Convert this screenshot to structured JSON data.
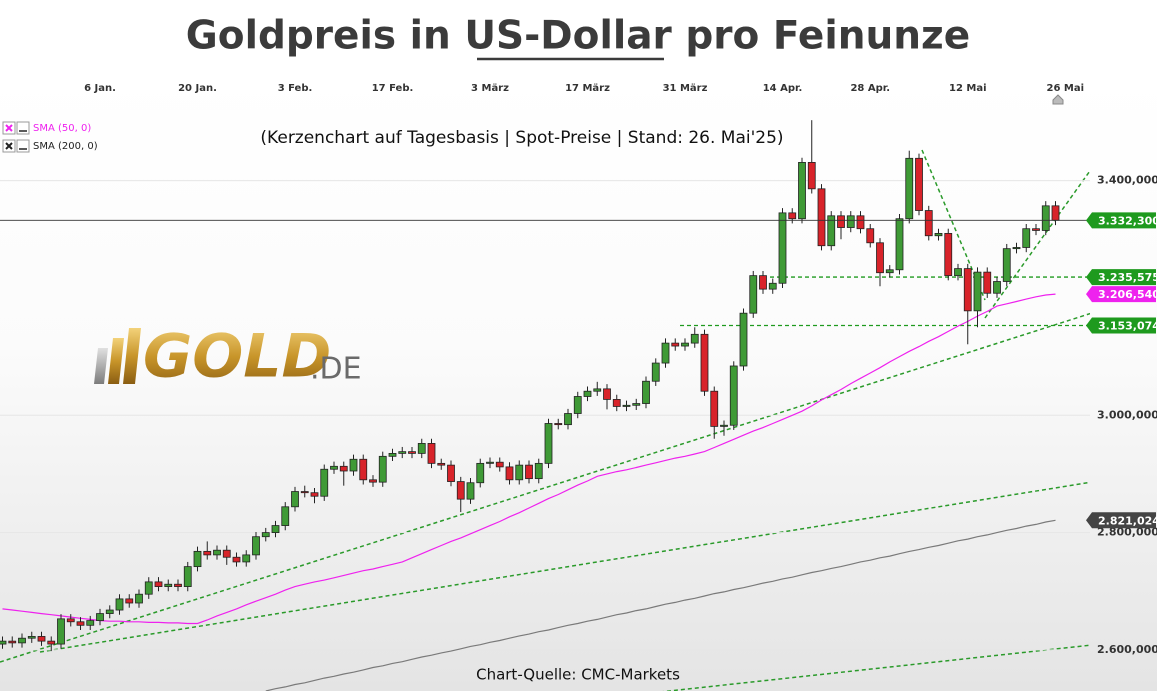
{
  "chart_data": {
    "type": "candlestick",
    "title": "Goldpreis in US-Dollar pro Feinunze",
    "subtitle": "(Kerzenchart auf Tagesbasis | Spot-Preise | Stand: 26. Mai'25)",
    "source": "Chart-Quelle: CMC-Markets",
    "logo": {
      "main": "GOLD",
      "suffix": ".DE"
    },
    "categories": [
      null,
      null,
      null,
      null,
      null,
      null,
      null,
      null,
      null,
      null,
      "6 Jan.",
      null,
      null,
      null,
      null,
      null,
      null,
      null,
      null,
      null,
      "20 Jan.",
      null,
      null,
      null,
      null,
      null,
      null,
      null,
      null,
      null,
      "3 Feb.",
      null,
      null,
      null,
      null,
      null,
      null,
      null,
      null,
      null,
      "17 Feb.",
      null,
      null,
      null,
      null,
      null,
      null,
      null,
      null,
      null,
      "3 März",
      null,
      null,
      null,
      null,
      null,
      null,
      null,
      null,
      null,
      "17 März",
      null,
      null,
      null,
      null,
      null,
      null,
      null,
      null,
      null,
      "31 März",
      null,
      null,
      null,
      null,
      null,
      null,
      null,
      null,
      null,
      "14 Apr.",
      null,
      null,
      null,
      null,
      null,
      null,
      null,
      null,
      "28 Apr.",
      null,
      null,
      null,
      null,
      null,
      null,
      null,
      null,
      null,
      "12 Mai",
      null,
      null,
      null,
      null,
      null,
      null,
      null,
      null,
      null,
      "26 Mai"
    ],
    "ohlc": {
      "up_color": "#3f9a36",
      "down_color": "#d8232a",
      "open": [
        2610,
        2615,
        2612,
        2620,
        2623,
        2615,
        2610,
        2653,
        2648,
        2642,
        2650,
        2662,
        2668,
        2687,
        2680,
        2695,
        2716,
        2708,
        2712,
        2708,
        2742,
        2768,
        2762,
        2770,
        2758,
        2750,
        2762,
        2793,
        2800,
        2812,
        2844,
        2870,
        2868,
        2862,
        2908,
        2913,
        2905,
        2925,
        2890,
        2886,
        2930,
        2935,
        2938,
        2935,
        2952,
        2918,
        2915,
        2887,
        2857,
        2885,
        2918,
        2920,
        2912,
        2890,
        2915,
        2892,
        2918,
        2986,
        2984,
        3003,
        3032,
        3041,
        3045,
        3027,
        3015,
        3017,
        3020,
        3058,
        3089,
        3123,
        3118,
        3123,
        3138,
        3041,
        2981,
        2983,
        3084,
        3174,
        3238,
        3215,
        3225,
        3345,
        3335,
        3431,
        3386,
        3289,
        3340,
        3320,
        3340,
        3318,
        3294,
        3243,
        3248,
        3335,
        3438,
        3349,
        3306,
        3310,
        3238,
        3250,
        3178,
        3244,
        3208,
        3228,
        3284,
        3286,
        3318,
        3315,
        3357,
        null
      ],
      "high": [
        2623,
        2623,
        2628,
        2631,
        2631,
        2623,
        2661,
        2661,
        2656,
        2658,
        2670,
        2676,
        2695,
        2695,
        2703,
        2724,
        2724,
        2720,
        2720,
        2750,
        2776,
        2785,
        2778,
        2778,
        2766,
        2770,
        2801,
        2808,
        2820,
        2852,
        2878,
        2880,
        2876,
        2916,
        2921,
        2921,
        2933,
        2933,
        2898,
        2938,
        2943,
        2946,
        2946,
        2960,
        2960,
        2926,
        2923,
        2895,
        2893,
        2926,
        2928,
        2928,
        2920,
        2923,
        2923,
        2926,
        2994,
        2994,
        3011,
        3040,
        3049,
        3057,
        3053,
        3035,
        3025,
        3028,
        3066,
        3097,
        3131,
        3131,
        3131,
        3150,
        3146,
        3049,
        2991,
        3092,
        3182,
        3246,
        3246,
        3233,
        3353,
        3353,
        3439,
        3503,
        3394,
        3348,
        3348,
        3348,
        3348,
        3326,
        3302,
        3256,
        3343,
        3451,
        3446,
        3357,
        3318,
        3318,
        3258,
        3258,
        3252,
        3252,
        3236,
        3292,
        3294,
        3326,
        3326,
        3365,
        3365,
        null
      ],
      "low": [
        2602,
        2604,
        2604,
        2612,
        2607,
        2598,
        2602,
        2640,
        2634,
        2634,
        2642,
        2654,
        2660,
        2672,
        2672,
        2687,
        2700,
        2700,
        2700,
        2700,
        2734,
        2754,
        2754,
        2745,
        2742,
        2742,
        2754,
        2785,
        2792,
        2804,
        2836,
        2860,
        2850,
        2854,
        2900,
        2880,
        2897,
        2882,
        2878,
        2878,
        2922,
        2927,
        2927,
        2927,
        2910,
        2907,
        2879,
        2835,
        2849,
        2877,
        2910,
        2904,
        2882,
        2882,
        2884,
        2884,
        2910,
        2976,
        2976,
        2995,
        3024,
        3033,
        3010,
        3007,
        3007,
        3009,
        3012,
        3050,
        3081,
        3110,
        3110,
        3115,
        3033,
        2960,
        2965,
        2975,
        3076,
        3166,
        3207,
        3207,
        3217,
        3327,
        3327,
        3378,
        3281,
        3281,
        3300,
        3312,
        3310,
        3286,
        3220,
        3235,
        3240,
        3327,
        3341,
        3298,
        3298,
        3230,
        3230,
        3121,
        3150,
        3200,
        3200,
        3220,
        3276,
        3278,
        3307,
        3307,
        3324,
        null
      ],
      "close": [
        2615,
        2612,
        2620,
        2623,
        2615,
        2610,
        2653,
        2648,
        2642,
        2650,
        2662,
        2668,
        2687,
        2680,
        2695,
        2716,
        2708,
        2712,
        2708,
        2742,
        2768,
        2762,
        2770,
        2758,
        2750,
        2762,
        2793,
        2800,
        2812,
        2844,
        2870,
        2868,
        2862,
        2908,
        2913,
        2905,
        2925,
        2890,
        2886,
        2930,
        2935,
        2938,
        2935,
        2952,
        2918,
        2915,
        2887,
        2857,
        2885,
        2918,
        2920,
        2912,
        2890,
        2915,
        2892,
        2918,
        2986,
        2984,
        3003,
        3032,
        3041,
        3045,
        3027,
        3015,
        3017,
        3020,
        3058,
        3089,
        3123,
        3118,
        3123,
        3138,
        3041,
        2981,
        2983,
        3084,
        3174,
        3238,
        3215,
        3225,
        3345,
        3335,
        3431,
        3386,
        3289,
        3340,
        3320,
        3340,
        3318,
        3294,
        3243,
        3248,
        3335,
        3438,
        3349,
        3306,
        3310,
        3238,
        3250,
        3178,
        3244,
        3208,
        3228,
        3284,
        3286,
        3318,
        3315,
        3357,
        3332.3,
        null
      ],
      "close_labels": {
        "108": "3.332,300"
      },
      "close_label_color": "#1e9a1e"
    },
    "series": [
      {
        "name": "SMA (50, 0)",
        "color": "#ee22ee",
        "values": [
          2670,
          2668,
          2666,
          2664,
          2662,
          2660,
          2658,
          2656,
          2654,
          2652,
          2650,
          2649,
          2649,
          2648,
          2648,
          2647,
          2647,
          2646,
          2646,
          2645,
          2645,
          2651,
          2658,
          2664,
          2670,
          2677,
          2683,
          2689,
          2695,
          2702,
          2708,
          2712,
          2716,
          2719,
          2723,
          2727,
          2731,
          2735,
          2738,
          2742,
          2746,
          2750,
          2757,
          2764,
          2771,
          2778,
          2785,
          2791,
          2798,
          2805,
          2812,
          2819,
          2827,
          2834,
          2842,
          2850,
          2858,
          2865,
          2873,
          2881,
          2888,
          2896,
          2900,
          2904,
          2907,
          2911,
          2915,
          2919,
          2923,
          2927,
          2930,
          2934,
          2938,
          2945,
          2952,
          2959,
          2966,
          2973,
          2979,
          2986,
          2993,
          3000,
          3007,
          3016,
          3026,
          3035,
          3044,
          3054,
          3063,
          3072,
          3081,
          3091,
          3100,
          3109,
          3117,
          3126,
          3134,
          3143,
          3152,
          3160,
          3169,
          3177,
          3186,
          3190,
          3194,
          3198,
          3202,
          3205,
          3206.54,
          null
        ],
        "value_labels": {
          "108": "3.206,540"
        }
      },
      {
        "name": "SMA (200, 0)",
        "color": "#7a7a7a",
        "values": [
          null,
          null,
          null,
          null,
          null,
          null,
          null,
          null,
          null,
          null,
          null,
          null,
          null,
          null,
          null,
          null,
          null,
          null,
          null,
          null,
          null,
          null,
          null,
          null,
          null,
          null,
          null,
          2530,
          2534,
          2537,
          2541,
          2544,
          2548,
          2552,
          2555,
          2559,
          2562,
          2566,
          2570,
          2573,
          2577,
          2580,
          2584,
          2588,
          2591,
          2595,
          2598,
          2602,
          2606,
          2609,
          2613,
          2616,
          2620,
          2624,
          2627,
          2631,
          2634,
          2638,
          2642,
          2645,
          2649,
          2652,
          2656,
          2660,
          2663,
          2667,
          2670,
          2674,
          2678,
          2681,
          2685,
          2688,
          2692,
          2696,
          2699,
          2703,
          2706,
          2710,
          2714,
          2717,
          2721,
          2724,
          2728,
          2732,
          2735,
          2739,
          2742,
          2746,
          2750,
          2753,
          2757,
          2760,
          2764,
          2768,
          2771,
          2775,
          2778,
          2782,
          2786,
          2789,
          2793,
          2796,
          2800,
          2804,
          2807,
          2811,
          2814,
          2818,
          2821.024,
          null
        ],
        "value_labels": {
          "108": "2.821,024"
        }
      }
    ],
    "levels": [
      {
        "value": 3235.575,
        "label": "3.235,575",
        "color": "#1e9a1e"
      },
      {
        "value": 3153.074,
        "label": "3.153,074",
        "color": "#1e9a1e"
      }
    ],
    "ylim": [
      2530,
      3580
    ],
    "yticks": [
      {
        "value": 2600,
        "label": "2.600,000"
      },
      {
        "value": 2800,
        "label": "2.800,000"
      },
      {
        "value": 3000,
        "label": "3.000,000"
      },
      {
        "value": 3400,
        "label": "3.400,000"
      }
    ],
    "grid": true
  }
}
